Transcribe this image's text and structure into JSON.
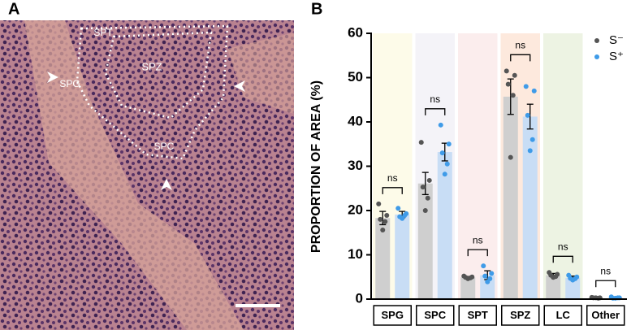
{
  "panel_a": {
    "label": "A",
    "regions": [
      "SPT",
      "SPZ",
      "SPG",
      "SPC"
    ]
  },
  "chart_data": {
    "type": "bar",
    "panel_label": "B",
    "y_label": "PROPORTION OF AREA (%)",
    "categories": [
      "SPG",
      "SPC",
      "SPT",
      "SPZ",
      "LC",
      "Other"
    ],
    "band_colors": [
      "#fdfbe9",
      "#f4f3f8",
      "#fbeded",
      "#fde9dd",
      "#edf3e3",
      "#ffffff"
    ],
    "significance": [
      "ns",
      "ns",
      "ns",
      "ns",
      "ns",
      "ns"
    ],
    "series": [
      {
        "name": "S⁻",
        "color": "#cfcfcf",
        "point_color": "#555555",
        "values": [
          18.3,
          26.1,
          4.9,
          45.7,
          5.4,
          0.3
        ],
        "errors": [
          1.5,
          2.5,
          0.2,
          4.0,
          0.4,
          0.1
        ],
        "points": [
          [
            21.5,
            18.9,
            18.0,
            17.5,
            15.6
          ],
          [
            35.4,
            26.8,
            25.3,
            22.8,
            20.0
          ],
          [
            5.2,
            5.0,
            4.9,
            4.8,
            4.6
          ],
          [
            51.5,
            50.5,
            48.5,
            46.0,
            32.0
          ],
          [
            6.0,
            5.6,
            5.4,
            5.1,
            4.9
          ],
          [
            0.4,
            0.3,
            0.3,
            0.2,
            0.3
          ]
        ]
      },
      {
        "name": "S⁺",
        "color": "#c8ddf5",
        "point_color": "#3f9be8",
        "values": [
          19.1,
          33.2,
          5.4,
          41.2,
          4.8,
          0.3
        ],
        "errors": [
          0.7,
          2.0,
          1.0,
          2.8,
          0.4,
          0.1
        ],
        "points": [
          [
            20.5,
            19.3,
            18.6,
            18.9,
            18.2
          ],
          [
            39.3,
            35.0,
            33.0,
            30.5,
            28.2
          ],
          [
            7.5,
            5.8,
            5.2,
            4.6,
            3.9
          ],
          [
            48.0,
            47.0,
            41.5,
            36.0,
            33.5
          ],
          [
            5.4,
            5.0,
            4.7,
            4.6,
            4.3
          ],
          [
            0.5,
            0.3,
            0.2,
            0.3,
            0.2
          ]
        ]
      }
    ],
    "ylim": [
      0,
      60
    ],
    "yticks": [
      0,
      10,
      20,
      30,
      40,
      50,
      60
    ],
    "legend": "upper right"
  }
}
